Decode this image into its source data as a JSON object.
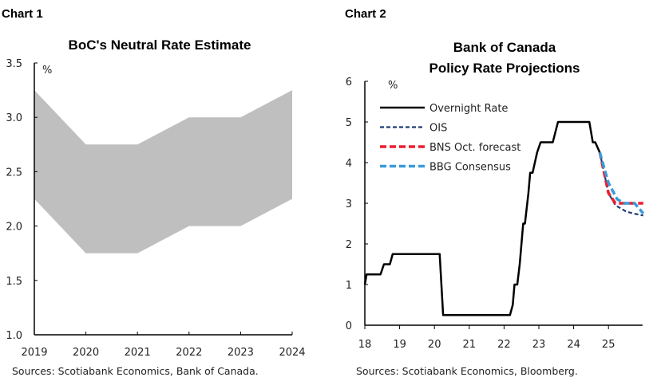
{
  "chart_data": [
    {
      "type": "area",
      "header": "Chart 1",
      "title": "BoC's Neutral Rate Estimate",
      "ylabel": "%",
      "source": "Sources: Scotiabank Economics, Bank of Canada.",
      "categories": [
        "2019",
        "2020",
        "2021",
        "2022",
        "2023",
        "2024"
      ],
      "series": [
        {
          "role": "lower",
          "values": [
            2.25,
            1.75,
            1.75,
            2.0,
            2.0,
            2.25
          ]
        },
        {
          "role": "upper",
          "values": [
            3.25,
            2.75,
            2.75,
            3.0,
            3.0,
            3.25
          ]
        }
      ],
      "fill_color": "#bfbfbf",
      "ylim": [
        1.0,
        3.5
      ],
      "yticks": [
        "1.0",
        "1.5",
        "2.0",
        "2.5",
        "3.0",
        "3.5"
      ],
      "grid": false
    },
    {
      "type": "line",
      "header": "Chart 2",
      "title": [
        "Bank of Canada",
        "Policy Rate Projections"
      ],
      "ylabel": "%",
      "source": "Sources: Scotiabank Economics, Bloomberg.",
      "xlim": [
        2018,
        2026
      ],
      "ylim": [
        0,
        6
      ],
      "xticks": [
        "18",
        "19",
        "20",
        "21",
        "22",
        "23",
        "24",
        "25"
      ],
      "yticks": [
        "0",
        "1",
        "2",
        "3",
        "4",
        "5",
        "6"
      ],
      "legend": "top-left",
      "grid": false,
      "series": [
        {
          "name": "Overnight Rate",
          "color": "#000000",
          "dash": "solid",
          "points": [
            [
              2018.0,
              1.0
            ],
            [
              2018.05,
              1.25
            ],
            [
              2018.45,
              1.25
            ],
            [
              2018.55,
              1.5
            ],
            [
              2018.72,
              1.5
            ],
            [
              2018.8,
              1.75
            ],
            [
              2020.15,
              1.75
            ],
            [
              2020.25,
              0.25
            ],
            [
              2022.17,
              0.25
            ],
            [
              2022.25,
              0.5
            ],
            [
              2022.3,
              1.0
            ],
            [
              2022.38,
              1.0
            ],
            [
              2022.45,
              1.5
            ],
            [
              2022.55,
              2.5
            ],
            [
              2022.6,
              2.5
            ],
            [
              2022.7,
              3.25
            ],
            [
              2022.75,
              3.75
            ],
            [
              2022.82,
              3.75
            ],
            [
              2022.95,
              4.25
            ],
            [
              2023.05,
              4.5
            ],
            [
              2023.4,
              4.5
            ],
            [
              2023.55,
              5.0
            ],
            [
              2024.45,
              5.0
            ],
            [
              2024.55,
              4.5
            ],
            [
              2024.62,
              4.5
            ],
            [
              2024.75,
              4.25
            ]
          ]
        },
        {
          "name": "OIS",
          "color": "#1f3c78",
          "dash": "short",
          "points": [
            [
              2024.75,
              4.25
            ],
            [
              2025.0,
              3.25
            ],
            [
              2025.2,
              2.95
            ],
            [
              2025.5,
              2.8
            ],
            [
              2025.7,
              2.75
            ],
            [
              2026.0,
              2.7
            ]
          ]
        },
        {
          "name": "BNS Oct. forecast",
          "color": "#ee1c2e",
          "dash": "long",
          "points": [
            [
              2024.75,
              4.25
            ],
            [
              2025.0,
              3.25
            ],
            [
              2025.2,
              3.0
            ],
            [
              2026.0,
              3.0
            ]
          ]
        },
        {
          "name": "BBG Consensus",
          "color": "#3a9ad9",
          "dash": "long",
          "points": [
            [
              2024.75,
              4.25
            ],
            [
              2025.0,
              3.5
            ],
            [
              2025.25,
              3.1
            ],
            [
              2025.45,
              3.0
            ],
            [
              2025.75,
              3.0
            ],
            [
              2026.0,
              2.75
            ]
          ]
        }
      ]
    }
  ]
}
